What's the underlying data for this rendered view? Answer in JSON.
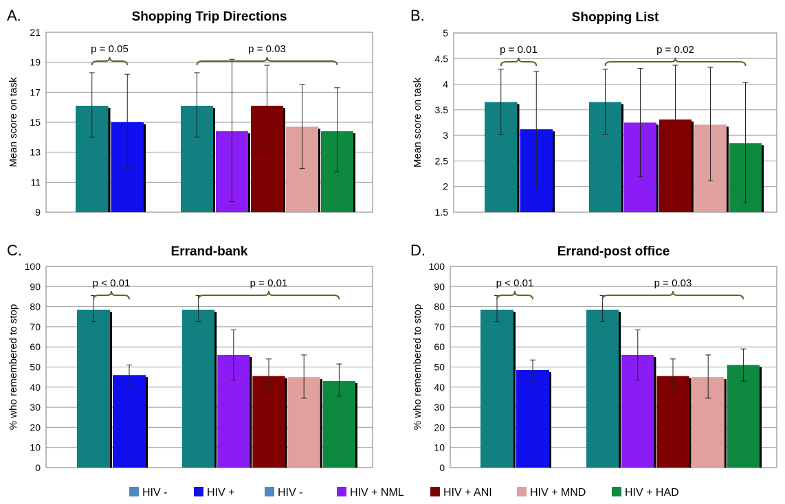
{
  "legend": [
    {
      "label": "HIV -",
      "color": "#4f86c6"
    },
    {
      "label": "HIV +",
      "color": "#1010ee"
    },
    {
      "label": "HIV -",
      "color": "#4f86c6"
    },
    {
      "label": "HIV + NML",
      "color": "#8a1cf5"
    },
    {
      "label": "HIV + ANI",
      "color": "#7f0000"
    },
    {
      "label": "HIV + MND",
      "color": "#e0a09d"
    },
    {
      "label": "HIV + HAD",
      "color": "#0e8a40"
    }
  ],
  "chart_data": [
    {
      "type": "bar",
      "panel_label": "A.",
      "title": "Shopping Trip Directions",
      "ylabel": "Mean score on task",
      "ylim": [
        9,
        21
      ],
      "yticks": [
        "9",
        "11",
        "13",
        "15",
        "17",
        "19",
        "21"
      ],
      "grid": true,
      "groups": [
        {
          "bars": [
            {
              "value": 16.1,
              "err_low": 14.0,
              "err_high": 18.3,
              "color": "#128080"
            },
            {
              "value": 15.0,
              "err_low": 11.9,
              "err_high": 18.2,
              "color": "#1010ee"
            }
          ],
          "p_label": "p = 0.05"
        },
        {
          "bars": [
            {
              "value": 16.1,
              "err_low": 14.0,
              "err_high": 18.3,
              "color": "#128080"
            },
            {
              "value": 14.4,
              "err_low": 9.7,
              "err_high": 19.2,
              "color": "#8a1cf5"
            },
            {
              "value": 16.1,
              "err_low": 13.4,
              "err_high": 18.8,
              "color": "#7f0000"
            },
            {
              "value": 14.7,
              "err_low": 11.9,
              "err_high": 17.5,
              "color": "#e0a09d"
            },
            {
              "value": 14.4,
              "err_low": 11.7,
              "err_high": 17.3,
              "color": "#0e8a40"
            }
          ],
          "p_label": "p = 0.03"
        }
      ]
    },
    {
      "type": "bar",
      "panel_label": "B.",
      "title": "Shopping List",
      "ylabel": "Mean score on task",
      "ylim": [
        1.5,
        5
      ],
      "yticks": [
        "1.5",
        "2",
        "2.5",
        "3",
        "3.5",
        "4",
        "4.5",
        "5"
      ],
      "grid": true,
      "groups": [
        {
          "bars": [
            {
              "value": 3.65,
              "err_low": 3.02,
              "err_high": 4.29,
              "color": "#128080"
            },
            {
              "value": 3.12,
              "err_low": 2.01,
              "err_high": 4.25,
              "color": "#1010ee"
            }
          ],
          "p_label": "p = 0.01"
        },
        {
          "bars": [
            {
              "value": 3.65,
              "err_low": 3.02,
              "err_high": 4.29,
              "color": "#128080"
            },
            {
              "value": 3.25,
              "err_low": 2.19,
              "err_high": 4.31,
              "color": "#8a1cf5"
            },
            {
              "value": 3.31,
              "err_low": 2.26,
              "err_high": 4.37,
              "color": "#7f0000"
            },
            {
              "value": 3.21,
              "err_low": 2.11,
              "err_high": 4.33,
              "color": "#e0a09d"
            },
            {
              "value": 2.85,
              "err_low": 1.68,
              "err_high": 4.03,
              "color": "#0e8a40"
            }
          ],
          "p_label": "p = 0.02"
        }
      ]
    },
    {
      "type": "bar",
      "panel_label": "C.",
      "title": "Errand-bank",
      "ylabel": "% who remembered to stop",
      "ylim": [
        0,
        100
      ],
      "yticks": [
        "0",
        "10",
        "20",
        "30",
        "40",
        "50",
        "60",
        "70",
        "80",
        "90",
        "100"
      ],
      "grid": true,
      "groups": [
        {
          "bars": [
            {
              "value": 78.5,
              "err_low": 72.5,
              "err_high": 85.5,
              "color": "#128080"
            },
            {
              "value": 46,
              "err_low": 41,
              "err_high": 51,
              "color": "#1010ee"
            }
          ],
          "p_label": "p < 0.01"
        },
        {
          "bars": [
            {
              "value": 78.5,
              "err_low": 72.5,
              "err_high": 85.5,
              "color": "#128080"
            },
            {
              "value": 56,
              "err_low": 43.5,
              "err_high": 68.5,
              "color": "#8a1cf5"
            },
            {
              "value": 45.5,
              "err_low": 37,
              "err_high": 54,
              "color": "#7f0000"
            },
            {
              "value": 45,
              "err_low": 34.5,
              "err_high": 56,
              "color": "#e0a09d"
            },
            {
              "value": 43,
              "err_low": 35.5,
              "err_high": 51.5,
              "color": "#0e8a40"
            }
          ],
          "p_label": "p = 0.01"
        }
      ]
    },
    {
      "type": "bar",
      "panel_label": "D.",
      "title": "Errand-post office",
      "ylabel": "% who remembered to stop",
      "ylim": [
        0,
        100
      ],
      "yticks": [
        "0",
        "10",
        "20",
        "30",
        "40",
        "50",
        "60",
        "70",
        "80",
        "90",
        "100"
      ],
      "grid": true,
      "groups": [
        {
          "bars": [
            {
              "value": 78.5,
              "err_low": 72.5,
              "err_high": 85.5,
              "color": "#128080"
            },
            {
              "value": 48.5,
              "err_low": 43.5,
              "err_high": 53.5,
              "color": "#1010ee"
            }
          ],
          "p_label": "p < 0.01"
        },
        {
          "bars": [
            {
              "value": 78.5,
              "err_low": 72.5,
              "err_high": 85.5,
              "color": "#128080"
            },
            {
              "value": 56,
              "err_low": 43.5,
              "err_high": 68.5,
              "color": "#8a1cf5"
            },
            {
              "value": 45.5,
              "err_low": 37,
              "err_high": 54,
              "color": "#7f0000"
            },
            {
              "value": 45,
              "err_low": 34.5,
              "err_high": 56,
              "color": "#e0a09d"
            },
            {
              "value": 51,
              "err_low": 43,
              "err_high": 59,
              "color": "#0e8a40"
            }
          ],
          "p_label": "p = 0.03"
        }
      ]
    }
  ]
}
